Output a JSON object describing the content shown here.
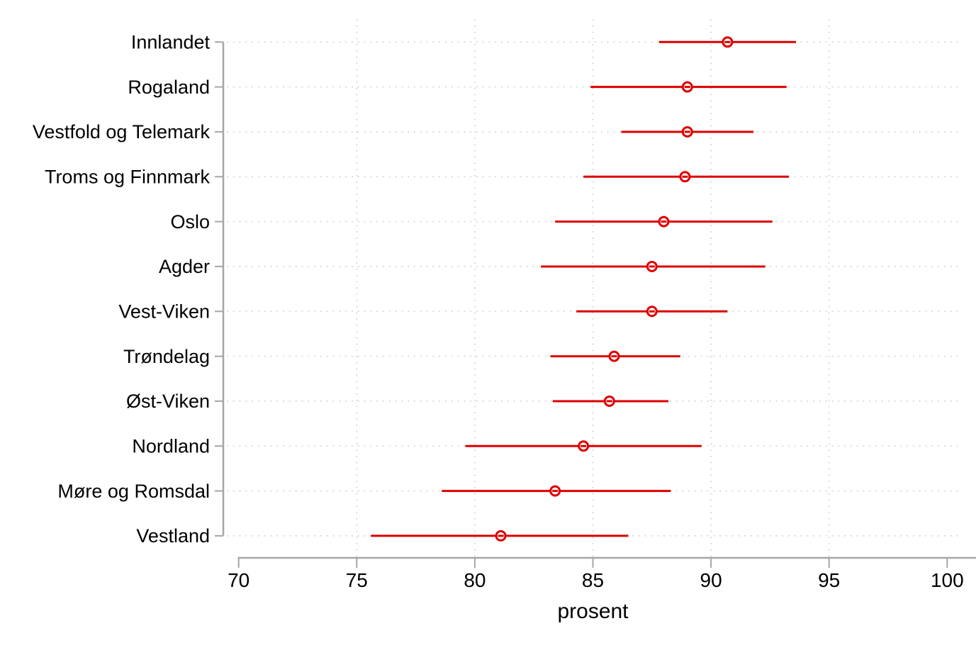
{
  "chart_data": {
    "type": "scatter",
    "subtype": "horizontal-dot-plot-with-confidence-intervals",
    "title": "",
    "xlabel": "prosent",
    "ylabel": "",
    "xlim": [
      69.4,
      100.6
    ],
    "xticks": [
      70,
      75,
      80,
      85,
      90,
      95,
      100
    ],
    "grid": {
      "vertical_gridlines_at": [
        75,
        80,
        85,
        90,
        95
      ],
      "horizontal_gridlines": "one per category",
      "style": "dotted"
    },
    "legend_position": "none",
    "categories": [
      "Innlandet",
      "Rogaland",
      "Vestfold og Telemark",
      "Troms og Finnmark",
      "Oslo",
      "Agder",
      "Vest-Viken",
      "Trøndelag",
      "Øst-Viken",
      "Nordland",
      "Møre og Romsdal",
      "Vestland"
    ],
    "series": [
      {
        "name": "estimate with confidence interval",
        "marker": "open-circle",
        "points": [
          {
            "category": "Innlandet",
            "estimate": 90.7,
            "ci_low": 87.8,
            "ci_high": 93.6
          },
          {
            "category": "Rogaland",
            "estimate": 89.0,
            "ci_low": 84.9,
            "ci_high": 93.2
          },
          {
            "category": "Vestfold og Telemark",
            "estimate": 89.0,
            "ci_low": 86.2,
            "ci_high": 91.8
          },
          {
            "category": "Troms og Finnmark",
            "estimate": 88.9,
            "ci_low": 84.6,
            "ci_high": 93.3
          },
          {
            "category": "Oslo",
            "estimate": 88.0,
            "ci_low": 83.4,
            "ci_high": 92.6
          },
          {
            "category": "Agder",
            "estimate": 87.5,
            "ci_low": 82.8,
            "ci_high": 92.3
          },
          {
            "category": "Vest-Viken",
            "estimate": 87.5,
            "ci_low": 84.3,
            "ci_high": 90.7
          },
          {
            "category": "Trøndelag",
            "estimate": 85.9,
            "ci_low": 83.2,
            "ci_high": 88.7
          },
          {
            "category": "Øst-Viken",
            "estimate": 85.7,
            "ci_low": 83.3,
            "ci_high": 88.2
          },
          {
            "category": "Nordland",
            "estimate": 84.6,
            "ci_low": 79.6,
            "ci_high": 89.6
          },
          {
            "category": "Møre og Romsdal",
            "estimate": 83.4,
            "ci_low": 78.6,
            "ci_high": 88.3
          },
          {
            "category": "Vestland",
            "estimate": 81.1,
            "ci_low": 75.6,
            "ci_high": 86.5
          }
        ]
      }
    ]
  },
  "colors": {
    "series": "#dd0000",
    "axis": "#a6a6a6",
    "grid": "#d4d4d4",
    "text": "#000000",
    "background": "#ffffff"
  }
}
